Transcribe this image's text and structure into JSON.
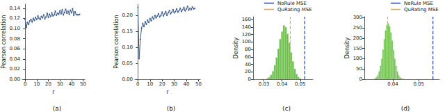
{
  "chart_data": [
    {
      "type": "line",
      "title": "(a)",
      "xlabel": "r",
      "ylabel": "Pearson correlation",
      "x": [
        0,
        1,
        2,
        3,
        4,
        5,
        6,
        7,
        8,
        9,
        10,
        11,
        12,
        13,
        14,
        15,
        16,
        17,
        18,
        19,
        20,
        21,
        22,
        23,
        24,
        25,
        26,
        27,
        28,
        29,
        30,
        31,
        32,
        33,
        34,
        35,
        36,
        37,
        38,
        39,
        40,
        41,
        42,
        43,
        44,
        45,
        46,
        47
      ],
      "values": [
        0.118,
        0.102,
        0.112,
        0.108,
        0.115,
        0.118,
        0.113,
        0.12,
        0.116,
        0.122,
        0.118,
        0.125,
        0.12,
        0.118,
        0.124,
        0.121,
        0.127,
        0.119,
        0.123,
        0.13,
        0.122,
        0.128,
        0.124,
        0.131,
        0.125,
        0.127,
        0.134,
        0.126,
        0.13,
        0.128,
        0.135,
        0.129,
        0.137,
        0.127,
        0.132,
        0.138,
        0.13,
        0.134,
        0.128,
        0.136,
        0.131,
        0.139,
        0.126,
        0.133,
        0.128,
        0.127,
        0.127,
        0.128
      ],
      "color": "#3b5b92",
      "marker": "circle",
      "xlim": [
        -2.5,
        51.5
      ],
      "xticks": [
        0,
        10,
        20,
        30,
        40,
        50
      ],
      "ylim": [
        0,
        0.148
      ],
      "yticks": [
        {
          "value": 0,
          "label": "0.00"
        },
        {
          "value": 0.02,
          "label": "0.02"
        },
        {
          "value": 0.04,
          "label": "0.04"
        },
        {
          "value": 0.06,
          "label": "0.06"
        },
        {
          "value": 0.08,
          "label": "0.08"
        },
        {
          "value": 0.1,
          "label": "0.10"
        },
        {
          "value": 0.12,
          "label": "0.12"
        },
        {
          "value": 0.14,
          "label": "0.14"
        }
      ],
      "grid": false
    },
    {
      "type": "line",
      "title": "(b)",
      "xlabel": "r",
      "ylabel": "Pearson correlation",
      "x": [
        0,
        1,
        2,
        3,
        4,
        5,
        6,
        7,
        8,
        9,
        10,
        11,
        12,
        13,
        14,
        15,
        16,
        17,
        18,
        19,
        20,
        21,
        22,
        23,
        24,
        25,
        26,
        27,
        28,
        29,
        30,
        31,
        32,
        33,
        34,
        35,
        36,
        37,
        38,
        39,
        40,
        41,
        42,
        43,
        44,
        45,
        46,
        47
      ],
      "values": [
        0.225,
        0.065,
        0.125,
        0.16,
        0.175,
        0.165,
        0.18,
        0.172,
        0.185,
        0.178,
        0.19,
        0.183,
        0.195,
        0.188,
        0.2,
        0.192,
        0.198,
        0.205,
        0.195,
        0.2,
        0.21,
        0.198,
        0.205,
        0.212,
        0.2,
        0.208,
        0.215,
        0.205,
        0.21,
        0.218,
        0.208,
        0.212,
        0.22,
        0.21,
        0.215,
        0.222,
        0.212,
        0.218,
        0.225,
        0.214,
        0.22,
        0.228,
        0.216,
        0.222,
        0.218,
        0.226,
        0.22,
        0.222
      ],
      "color": "#3b5b92",
      "marker": "circle",
      "xlim": [
        -2.5,
        51.5
      ],
      "xticks": [
        0,
        10,
        20,
        30,
        40,
        50
      ],
      "ylim": [
        0,
        0.235
      ],
      "yticks": [
        {
          "value": 0,
          "label": "0.00"
        },
        {
          "value": 0.05,
          "label": "0.05"
        },
        {
          "value": 0.1,
          "label": "0.10"
        },
        {
          "value": 0.15,
          "label": "0.15"
        },
        {
          "value": 0.2,
          "label": "0.20"
        }
      ],
      "grid": false
    },
    {
      "type": "histogram",
      "title": "(c)",
      "ylabel": "Density",
      "bins": [
        0.0315,
        0.0325,
        0.0335,
        0.0345,
        0.0355,
        0.0365,
        0.0375,
        0.0385,
        0.0395,
        0.0405,
        0.0415,
        0.0425,
        0.0435,
        0.0445,
        0.0455,
        0.0465,
        0.0475,
        0.0485,
        0.0495,
        0.0505
      ],
      "counts": [
        3,
        6,
        12,
        22,
        38,
        58,
        82,
        108,
        128,
        145,
        140,
        122,
        98,
        72,
        48,
        28,
        14,
        6,
        2
      ],
      "color": "#6abf4b",
      "series": [
        {
          "name": "NoRule MSE",
          "type": "vline",
          "values": [
            0.0525
          ],
          "color": "#2d3fa0",
          "line_style": "dashed"
        },
        {
          "name": "QuRating MSE",
          "type": "vline",
          "values": [
            0.0445
          ],
          "color": "#f5a623",
          "line_style": "dashed"
        }
      ],
      "legend": "top",
      "xlim": [
        0.024,
        0.057
      ],
      "xticks": [
        0.03,
        0.04,
        0.05
      ],
      "ylim": [
        0,
        168
      ],
      "yticks": [
        0,
        20,
        40,
        60,
        80,
        100,
        120,
        140,
        160
      ],
      "grid": false
    },
    {
      "type": "histogram",
      "title": "(d)",
      "ylabel": "Density",
      "bins": [
        0.0325,
        0.033,
        0.0335,
        0.034,
        0.0345,
        0.035,
        0.0355,
        0.036,
        0.0365,
        0.037,
        0.0375,
        0.038,
        0.0385,
        0.039,
        0.0395,
        0.04,
        0.0405,
        0.041,
        0.0415,
        0.042,
        0.0425,
        0.043,
        0.0435,
        0.044,
        0.0445
      ],
      "counts": [
        2,
        5,
        10,
        20,
        38,
        65,
        100,
        145,
        195,
        238,
        265,
        272,
        258,
        228,
        188,
        142,
        100,
        65,
        38,
        20,
        10,
        5,
        2,
        1
      ],
      "color": "#6abf4b",
      "series": [
        {
          "name": "NoRule MSE",
          "type": "vline",
          "values": [
            0.0555
          ],
          "color": "#2d3fa0",
          "line_style": "dashed"
        },
        {
          "name": "QuRating MSE",
          "type": "vline",
          "values": [
            0.038
          ],
          "color": "#f5a623",
          "line_style": "dashed"
        }
      ],
      "legend": "top",
      "xlim": [
        0.029,
        0.058
      ],
      "xticks": [
        0.04,
        0.05
      ],
      "ylim": [
        0,
        305
      ],
      "yticks": [
        0,
        50,
        100,
        150,
        200,
        250,
        300
      ],
      "grid": false
    }
  ]
}
